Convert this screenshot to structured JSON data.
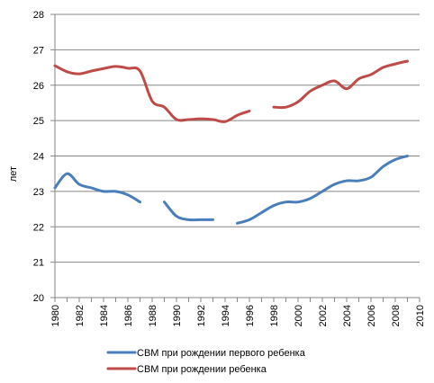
{
  "chart_data": {
    "type": "line",
    "title": "",
    "xlabel": "",
    "ylabel": "лет",
    "ylim": [
      20,
      28
    ],
    "xlim": [
      1980,
      2010
    ],
    "y_ticks": [
      "20",
      "21",
      "22",
      "23",
      "24",
      "25",
      "26",
      "27",
      "28"
    ],
    "x_ticks": [
      "1980",
      "1982",
      "1984",
      "1986",
      "1988",
      "1990",
      "1992",
      "1994",
      "1996",
      "1998",
      "2000",
      "2002",
      "2004",
      "2006",
      "2008",
      "2010"
    ],
    "grid": "horizontal",
    "legend_position": "bottom",
    "series": [
      {
        "name": "СВМ при рождении первого ребенка",
        "color": "#4A7EBB",
        "points": [
          [
            1980,
            23.1
          ],
          [
            1981,
            23.5
          ],
          [
            1982,
            23.2
          ],
          [
            1983,
            23.1
          ],
          [
            1984,
            23.0
          ],
          [
            1985,
            23.0
          ],
          [
            1986,
            22.9
          ],
          [
            1987,
            22.7
          ],
          null,
          [
            1989,
            22.7
          ],
          [
            1990,
            22.3
          ],
          [
            1991,
            22.2
          ],
          [
            1992,
            22.2
          ],
          [
            1993,
            22.2
          ],
          null,
          [
            1995,
            22.1
          ],
          [
            1996,
            22.2
          ],
          [
            1997,
            22.4
          ],
          [
            1998,
            22.6
          ],
          [
            1999,
            22.7
          ],
          [
            2000,
            22.7
          ],
          [
            2001,
            22.8
          ],
          [
            2002,
            23.0
          ],
          [
            2003,
            23.2
          ],
          [
            2004,
            23.3
          ],
          [
            2005,
            23.3
          ],
          [
            2006,
            23.4
          ],
          [
            2007,
            23.7
          ],
          [
            2008,
            23.9
          ],
          [
            2009,
            24.0
          ]
        ]
      },
      {
        "name": "СВМ при рождении ребенка",
        "color": "#BE4B48",
        "points": [
          [
            1980,
            26.55
          ],
          [
            1981,
            26.38
          ],
          [
            1982,
            26.32
          ],
          [
            1983,
            26.4
          ],
          [
            1984,
            26.47
          ],
          [
            1985,
            26.53
          ],
          [
            1986,
            26.48
          ],
          [
            1987,
            26.4
          ],
          [
            1988,
            25.55
          ],
          [
            1989,
            25.38
          ],
          [
            1990,
            25.03
          ],
          [
            1991,
            25.03
          ],
          [
            1992,
            25.05
          ],
          [
            1993,
            25.03
          ],
          [
            1994,
            24.97
          ],
          [
            1995,
            25.15
          ],
          [
            1996,
            25.27
          ],
          null,
          [
            1998,
            25.38
          ],
          [
            1999,
            25.38
          ],
          [
            2000,
            25.53
          ],
          [
            2001,
            25.83
          ],
          [
            2002,
            26.0
          ],
          [
            2003,
            26.12
          ],
          [
            2004,
            25.9
          ],
          [
            2005,
            26.18
          ],
          [
            2006,
            26.3
          ],
          [
            2007,
            26.5
          ],
          [
            2008,
            26.6
          ],
          [
            2009,
            26.68
          ]
        ]
      }
    ]
  }
}
